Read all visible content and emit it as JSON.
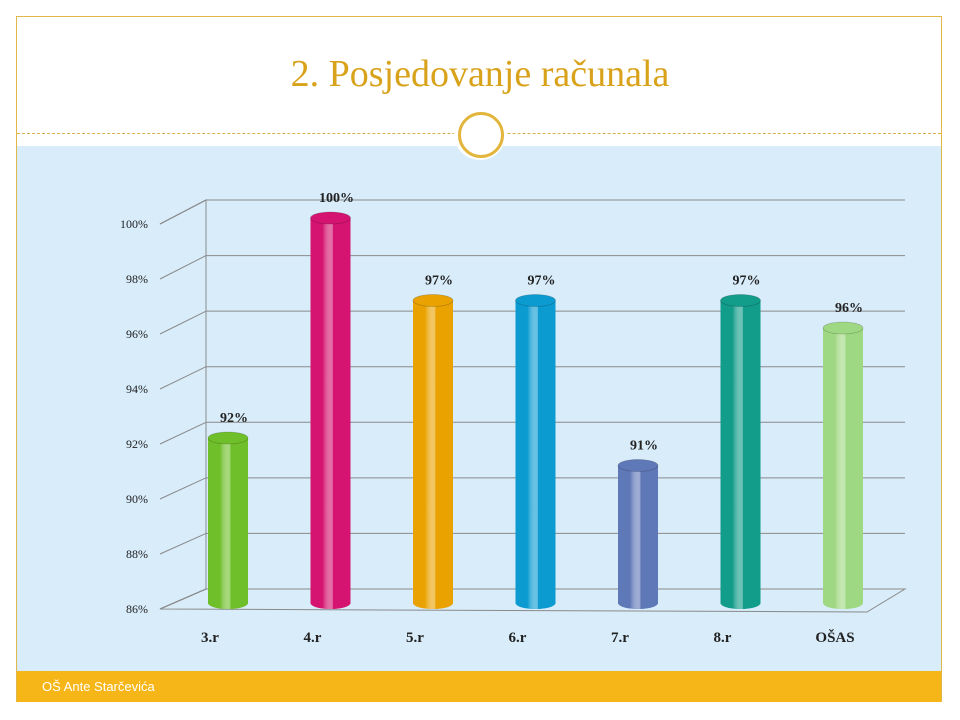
{
  "slide": {
    "title": "2. Posjedovanje računala",
    "footer": "OŠ Ante Starčevića"
  },
  "colors": {
    "accent": "#d9a21b",
    "content_background": "#d8ecfa",
    "footer_bar": "#f7b617"
  },
  "chart_data": {
    "type": "bar",
    "title": "",
    "xlabel": "",
    "ylabel": "",
    "categories": [
      "3.r",
      "4.r",
      "5.r",
      "6.r",
      "7.r",
      "8.r",
      "OŠAS"
    ],
    "values": [
      92,
      100,
      97,
      97,
      91,
      97,
      96
    ],
    "data_labels": [
      "92%",
      "100%",
      "97%",
      "97%",
      "91%",
      "97%",
      "96%"
    ],
    "colors": [
      "#6fbf2a",
      "#d41470",
      "#e9a200",
      "#0b9bd0",
      "#5f78b8",
      "#129c8a",
      "#9fd882"
    ],
    "yticks": [
      "86%",
      "88%",
      "90%",
      "92%",
      "94%",
      "96%",
      "98%",
      "100%"
    ],
    "ylim": [
      86,
      100
    ],
    "grid": true,
    "legend": "none",
    "style": "3d-cylinder"
  }
}
